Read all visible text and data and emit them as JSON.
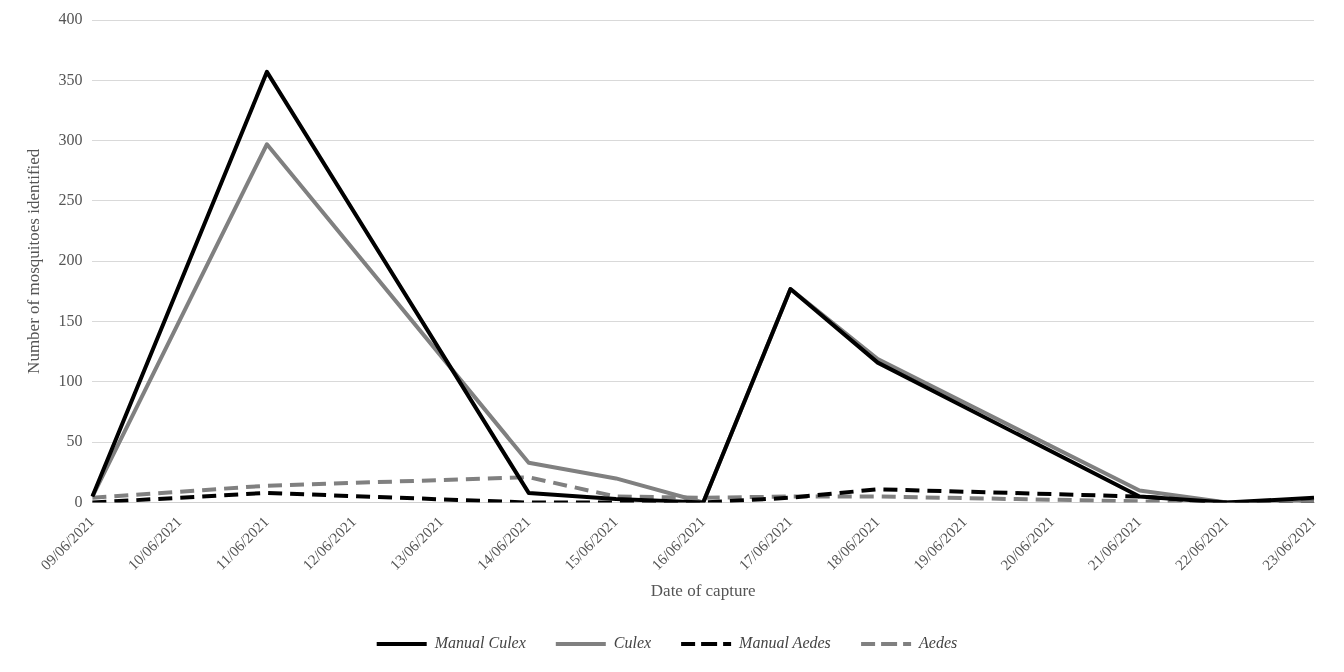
{
  "chart_data": {
    "type": "line",
    "xlabel": "Date of capture",
    "ylabel": "Number of mosquitoes identified",
    "categories": [
      "09/06/2021",
      "10/06/2021",
      "11/06/2021",
      "12/06/2021",
      "13/06/2021",
      "14/06/2021",
      "15/06/2021",
      "16/06/2021",
      "17/06/2021",
      "18/06/2021",
      "19/06/2021",
      "20/06/2021",
      "21/06/2021",
      "22/06/2021",
      "23/06/2021"
    ],
    "series": [
      {
        "name": "Manual Culex",
        "color": "#000000",
        "line_style": "solid",
        "values": [
          5,
          null,
          357,
          null,
          null,
          8,
          3,
          0,
          177,
          116,
          null,
          null,
          5,
          0,
          4
        ]
      },
      {
        "name": "Culex",
        "color": "#808080",
        "line_style": "solid",
        "values": [
          5,
          null,
          297,
          null,
          null,
          33,
          20,
          0,
          177,
          119,
          null,
          null,
          10,
          0,
          0
        ]
      },
      {
        "name": "Manual Aedes",
        "color": "#000000",
        "line_style": "dashed",
        "values": [
          0,
          null,
          8,
          null,
          null,
          0,
          0,
          0,
          4,
          11,
          null,
          null,
          5,
          0,
          0
        ]
      },
      {
        "name": "Aedes",
        "color": "#808080",
        "line_style": "dashed",
        "values": [
          4,
          null,
          14,
          null,
          null,
          21,
          5,
          4,
          5,
          5,
          null,
          null,
          1,
          0,
          0
        ]
      }
    ],
    "ylim": [
      0,
      400
    ],
    "yticks": [
      0,
      50,
      100,
      150,
      200,
      250,
      300,
      350,
      400
    ],
    "grid": "y",
    "legend": "bottom",
    "marker": "none"
  }
}
